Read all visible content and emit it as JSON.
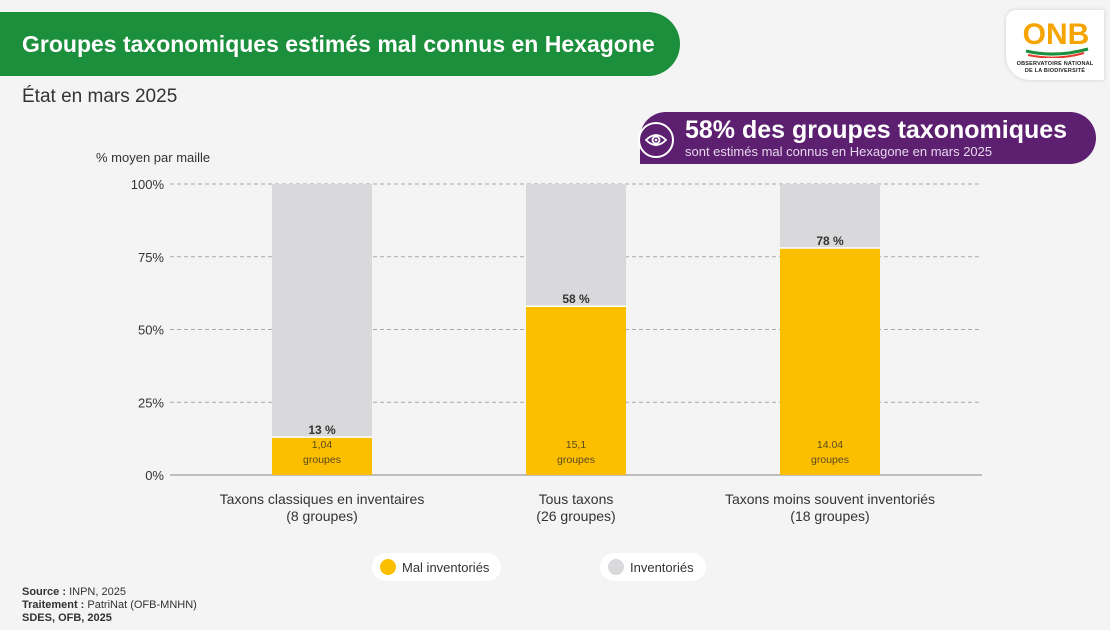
{
  "header": {
    "title": "Groupes taxonomiques estimés mal connus en Hexagone",
    "subtitle": "État en mars 2025"
  },
  "logo": {
    "icon": "onb-logo",
    "letters": "ONB",
    "line1": "OBSERVATOIRE NATIONAL",
    "line2": "DE LA BIODIVERSITÉ"
  },
  "callout": {
    "icon": "eye-icon",
    "headline": "58% des groupes taxonomiques",
    "text": "sont estimés mal connus en Hexagone en mars 2025"
  },
  "chart_data": {
    "type": "bar",
    "stacked": true,
    "ylabel": "% moyen par maille",
    "ylim": [
      0,
      100
    ],
    "yticks": [
      "0%",
      "25%",
      "50%",
      "75%",
      "100%"
    ],
    "grid": true,
    "categories": [
      [
        "Taxons classiques en inventaires",
        "(8 groupes)"
      ],
      [
        "Tous taxons",
        "(26 groupes)"
      ],
      [
        "Taxons moins souvent inventoriés",
        "(18 groupes)"
      ]
    ],
    "series": [
      {
        "name": "Mal inventoriés",
        "color": "#fbbf00",
        "values": [
          13,
          58,
          78
        ],
        "labels": [
          "13 %",
          "58 %",
          "78 %"
        ],
        "inner_labels": [
          [
            "1,04",
            "groupes"
          ],
          [
            "15,1",
            "groupes"
          ],
          [
            "14.04",
            "groupes"
          ]
        ]
      },
      {
        "name": "Inventoriés",
        "color": "#d9d9db",
        "values": [
          87,
          42,
          22
        ]
      }
    ],
    "legend_position": "bottom"
  },
  "footer": {
    "source_label": "Source :",
    "source_value": "INPN, 2025",
    "treatment_label": "Traitement :",
    "treatment_value": "PatriNat (OFB-MNHN)",
    "credit": "SDES, OFB, 2025"
  }
}
